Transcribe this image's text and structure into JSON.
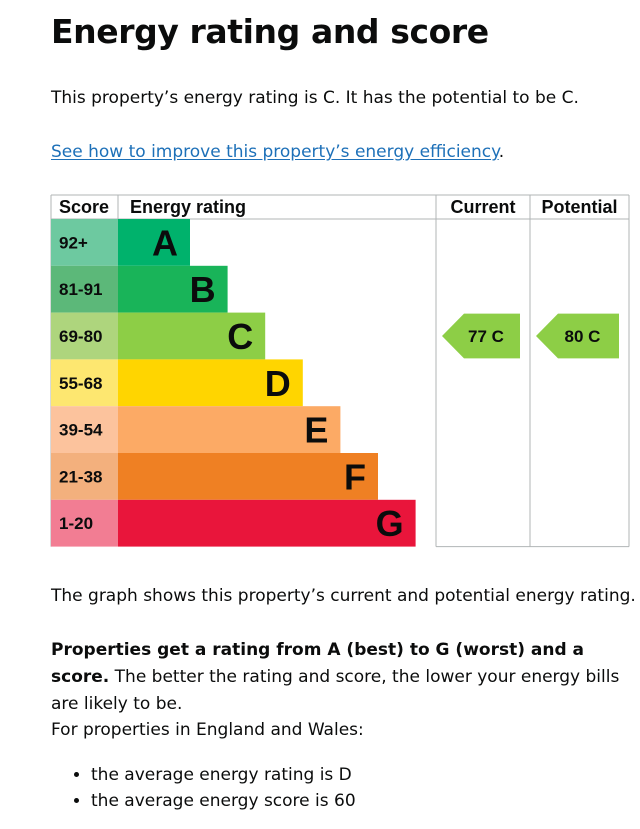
{
  "heading": "Energy rating and score",
  "intro": "This property’s energy rating is C. It has the potential to be C.",
  "improve_link": "See how to improve this property’s energy efficiency",
  "improve_punct": ".",
  "chart_data": {
    "type": "bar",
    "columns": {
      "score": "Score",
      "rating": "Energy rating",
      "current": "Current",
      "potential": "Potential"
    },
    "bands": [
      {
        "band": "A",
        "range": "92+",
        "score_color": "#6dc9a0",
        "bar_color": "#00b26c"
      },
      {
        "band": "B",
        "range": "81-91",
        "score_color": "#5cb879",
        "bar_color": "#19b459"
      },
      {
        "band": "C",
        "range": "69-80",
        "score_color": "#aed57d",
        "bar_color": "#8dce46"
      },
      {
        "band": "D",
        "range": "55-68",
        "score_color": "#fde770",
        "bar_color": "#ffd500"
      },
      {
        "band": "E",
        "range": "39-54",
        "score_color": "#fcc39d",
        "bar_color": "#fcaa65"
      },
      {
        "band": "F",
        "range": "21-38",
        "score_color": "#f3b07d",
        "bar_color": "#ef8023"
      },
      {
        "band": "G",
        "range": "1-20",
        "score_color": "#f27d93",
        "bar_color": "#e9153b"
      }
    ],
    "current": {
      "score": 77,
      "band": "C",
      "label": "77  C"
    },
    "potential": {
      "score": 80,
      "band": "C",
      "label": "80  C"
    },
    "arrow_color": "#8dce46"
  },
  "graph_note": "The graph shows this property’s current and potential energy rating.",
  "rating_note_bold": "Properties get a rating from A (best) to G (worst) and a score.",
  "rating_note_rest": " The better the rating and score, the lower your energy bills are likely to be.",
  "region_note": "For properties in England and Wales:",
  "bullets": [
    "the average energy rating is D",
    "the average energy score is 60"
  ]
}
